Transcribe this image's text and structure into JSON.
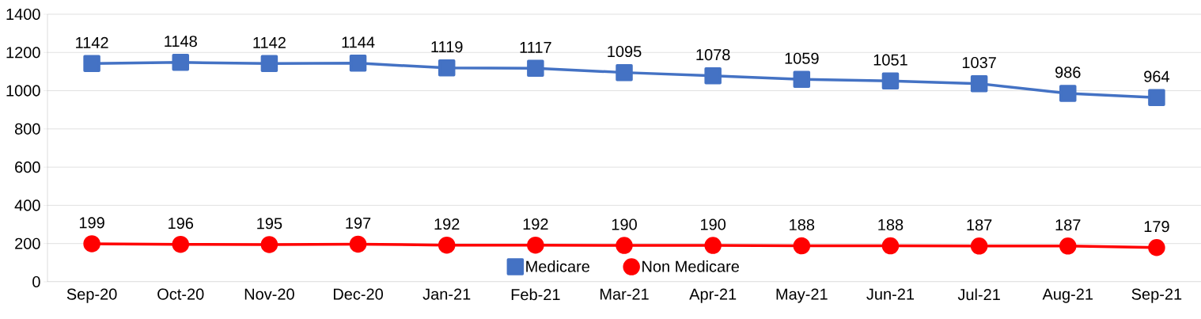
{
  "chart_data": {
    "type": "line",
    "categories": [
      "Sep-20",
      "Oct-20",
      "Nov-20",
      "Dec-20",
      "Jan-21",
      "Feb-21",
      "Mar-21",
      "Apr-21",
      "May-21",
      "Jun-21",
      "Jul-21",
      "Aug-21",
      "Sep-21"
    ],
    "series": [
      {
        "name": "Medicare",
        "color": "#4472c4",
        "marker": "square",
        "values": [
          1142,
          1148,
          1142,
          1144,
          1119,
          1117,
          1095,
          1078,
          1059,
          1051,
          1037,
          986,
          964
        ]
      },
      {
        "name": "Non Medicare",
        "color": "#ff0000",
        "marker": "circle",
        "values": [
          199,
          196,
          195,
          197,
          192,
          192,
          190,
          190,
          188,
          188,
          187,
          187,
          179
        ]
      }
    ],
    "ylim": [
      0,
      1400
    ],
    "yticks": [
      0,
      200,
      400,
      600,
      800,
      1000,
      1200,
      1400
    ],
    "grid": "y",
    "legend": "bottom",
    "data_labels": true,
    "line_style": "solid"
  }
}
